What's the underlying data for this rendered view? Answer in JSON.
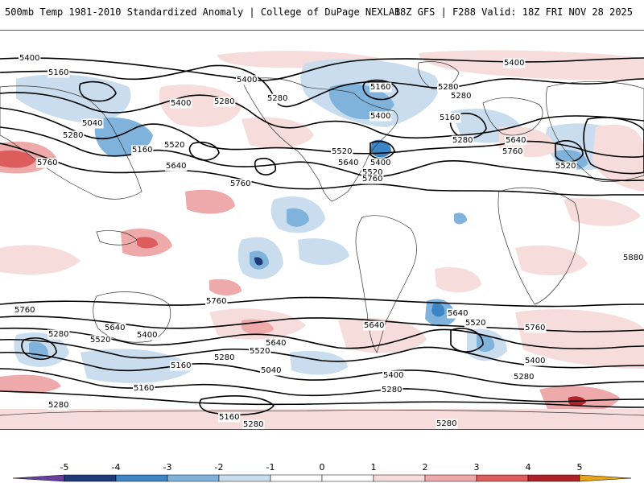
{
  "header": {
    "title": "500mb Temp 1981-2010 Standardized Anomaly | College of DuPage NEXLAB",
    "run_info": "18Z GFS | F288 Valid: 18Z FRI NOV 28 2025"
  },
  "colors": {
    "neg5": "#6a3fa0",
    "neg4": "#1f3a78",
    "neg3": "#3d86c6",
    "neg2": "#7fb3dc",
    "neg1": "#c9ddef",
    "pos1": "#f7dcdc",
    "pos2": "#eeaaaa",
    "pos3": "#dd5c5c",
    "pos4": "#b0222a",
    "pos5": "#e9a514",
    "contour": "#000000"
  },
  "contour_labels": {
    "row1": [
      "5400",
      "5160",
      "5400",
      "5280",
      "5400",
      "5160",
      "5280",
      "5160",
      "5280",
      "5400"
    ],
    "row2": [
      "5280",
      "5040",
      "5280",
      "5160",
      "5400",
      "5520",
      "5280",
      "5640",
      "5760"
    ],
    "row3": [
      "5760",
      "5640",
      "5520",
      "5640",
      "5520",
      "5400",
      "5760",
      "5520"
    ],
    "row4": [
      "5760",
      "5880"
    ],
    "row5": [
      "5760",
      "5760",
      "5640",
      "5760",
      "5640"
    ],
    "row6": [
      "5280",
      "5640",
      "5520",
      "5400",
      "5640",
      "5520",
      "5520"
    ],
    "row7": [
      "5160",
      "5280",
      "5040",
      "5400",
      "5400",
      "5280"
    ],
    "row8": [
      "5160",
      "5280",
      "5280",
      "5160",
      "5280",
      "5280"
    ]
  },
  "colorbar": {
    "ticks": [
      "-5",
      "-4",
      "-3",
      "-2",
      "-1",
      "0",
      "1",
      "2",
      "3",
      "4",
      "5"
    ]
  }
}
